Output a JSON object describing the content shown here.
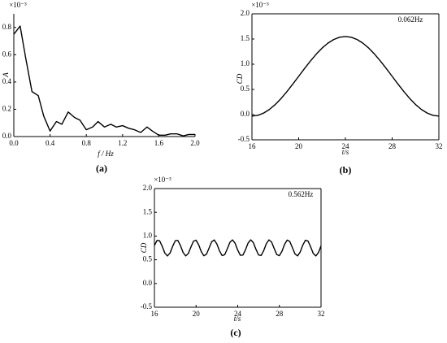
{
  "chart_data": [
    {
      "type": "line",
      "panel_label": "(a)",
      "x_label": "f / Hz",
      "y_label": "A",
      "exponent": "×10⁻³",
      "x": [
        0,
        0.07,
        0.13,
        0.2,
        0.27,
        0.33,
        0.4,
        0.47,
        0.53,
        0.6,
        0.67,
        0.73,
        0.8,
        0.87,
        0.93,
        1.0,
        1.07,
        1.13,
        1.2,
        1.27,
        1.33,
        1.4,
        1.47,
        1.53,
        1.6,
        1.67,
        1.73,
        1.8,
        1.87,
        1.93,
        2.0
      ],
      "series": [
        {
          "color": "#000000",
          "values": [
            0.75,
            0.81,
            0.58,
            0.33,
            0.3,
            0.15,
            0.04,
            0.11,
            0.09,
            0.18,
            0.14,
            0.12,
            0.05,
            0.07,
            0.11,
            0.07,
            0.09,
            0.07,
            0.08,
            0.06,
            0.05,
            0.03,
            0.07,
            0.04,
            0.01,
            0.01,
            0.02,
            0.02,
            0.005,
            0.015,
            0.015
          ]
        }
      ],
      "xlim": [
        0,
        2.0
      ],
      "xticks": [
        {
          "value": 0,
          "label": "0.0"
        },
        0.4,
        0.8,
        1.2,
        1.6,
        {
          "value": 2,
          "label": "2.0"
        }
      ],
      "ylim": [
        0,
        0.9
      ],
      "yticks": [
        {
          "value": 0,
          "label": "0.0"
        },
        0.2,
        0.4,
        0.6,
        0.8
      ]
    },
    {
      "type": "line",
      "panel_label": "(b)",
      "x_label": "t/s",
      "y_label": "CD",
      "exponent": "×10⁻³",
      "annotation": "0.062Hz",
      "x": [
        16,
        16.5,
        17,
        17.5,
        18,
        18.5,
        19,
        19.5,
        20,
        20.5,
        21,
        21.5,
        22,
        22.5,
        23,
        23.5,
        24,
        24.5,
        25,
        25.5,
        26,
        26.5,
        27,
        27.5,
        28,
        28.5,
        29,
        29.5,
        30,
        30.5,
        31,
        31.5,
        32
      ],
      "series": [
        {
          "color": "#000000",
          "values": [
            -0.03,
            -0.015,
            0.03,
            0.103,
            0.201,
            0.321,
            0.458,
            0.606,
            0.76,
            0.914,
            1.062,
            1.199,
            1.319,
            1.417,
            1.49,
            1.535,
            1.55,
            1.535,
            1.49,
            1.417,
            1.319,
            1.199,
            1.062,
            0.914,
            0.76,
            0.606,
            0.458,
            0.321,
            0.201,
            0.103,
            0.03,
            -0.015,
            -0.03
          ]
        }
      ],
      "xlim": [
        16,
        32
      ],
      "xticks": [
        16,
        20,
        24,
        28,
        32
      ],
      "ylim": [
        -0.5,
        2.0
      ],
      "yticks": [
        -0.5,
        {
          "value": 0,
          "label": "0.0"
        },
        0.5,
        {
          "value": 1,
          "label": "1.0"
        },
        1.5,
        {
          "value": 2,
          "label": "2.0"
        }
      ]
    },
    {
      "type": "line",
      "panel_label": "(c)",
      "x_label": "t/s",
      "y_label": "CD",
      "exponent": "×10⁻³",
      "annotation": "0.562Hz",
      "x": [
        16,
        16.25,
        16.5,
        16.75,
        17,
        17.25,
        17.5,
        17.75,
        18,
        18.25,
        18.5,
        18.75,
        19,
        19.25,
        19.5,
        19.75,
        20,
        20.25,
        20.5,
        20.75,
        21,
        21.25,
        21.5,
        21.75,
        22,
        22.25,
        22.5,
        22.75,
        23,
        23.25,
        23.5,
        23.75,
        24,
        24.25,
        24.5,
        24.75,
        25,
        25.25,
        25.5,
        25.75,
        26,
        26.25,
        26.5,
        26.75,
        27,
        27.25,
        27.5,
        27.75,
        28,
        28.25,
        28.5,
        28.75,
        29,
        29.25,
        29.5,
        29.75,
        30,
        30.25,
        30.5,
        30.75,
        31,
        31.25,
        31.5,
        31.75,
        32
      ],
      "series": [
        {
          "color": "#000000",
          "values": [
            0.8,
            0.907,
            0.9,
            0.783,
            0.642,
            0.58,
            0.642,
            0.783,
            0.9,
            0.907,
            0.8,
            0.656,
            0.581,
            0.63,
            0.766,
            0.891,
            0.913,
            0.816,
            0.671,
            0.584,
            0.617,
            0.748,
            0.88,
            0.917,
            0.832,
            0.687,
            0.588,
            0.607,
            0.731,
            0.868,
            0.919,
            0.847,
            0.704,
            0.594,
            0.599,
            0.713,
            0.855,
            0.92,
            0.861,
            0.721,
            0.602,
            0.591,
            0.696,
            0.84,
            0.919,
            0.874,
            0.738,
            0.611,
            0.586,
            0.68,
            0.825,
            0.916,
            0.885,
            0.756,
            0.622,
            0.582,
            0.664,
            0.809,
            0.911,
            0.895,
            0.774,
            0.635,
            0.58,
            0.65,
            0.792
          ]
        }
      ],
      "xlim": [
        16,
        32
      ],
      "xticks": [
        16,
        20,
        24,
        28,
        32
      ],
      "ylim": [
        -0.5,
        2.0
      ],
      "yticks": [
        -0.5,
        {
          "value": 0,
          "label": "0.0"
        },
        0.5,
        {
          "value": 1,
          "label": "1.0"
        },
        1.5,
        {
          "value": 2,
          "label": "2.0"
        }
      ]
    }
  ]
}
